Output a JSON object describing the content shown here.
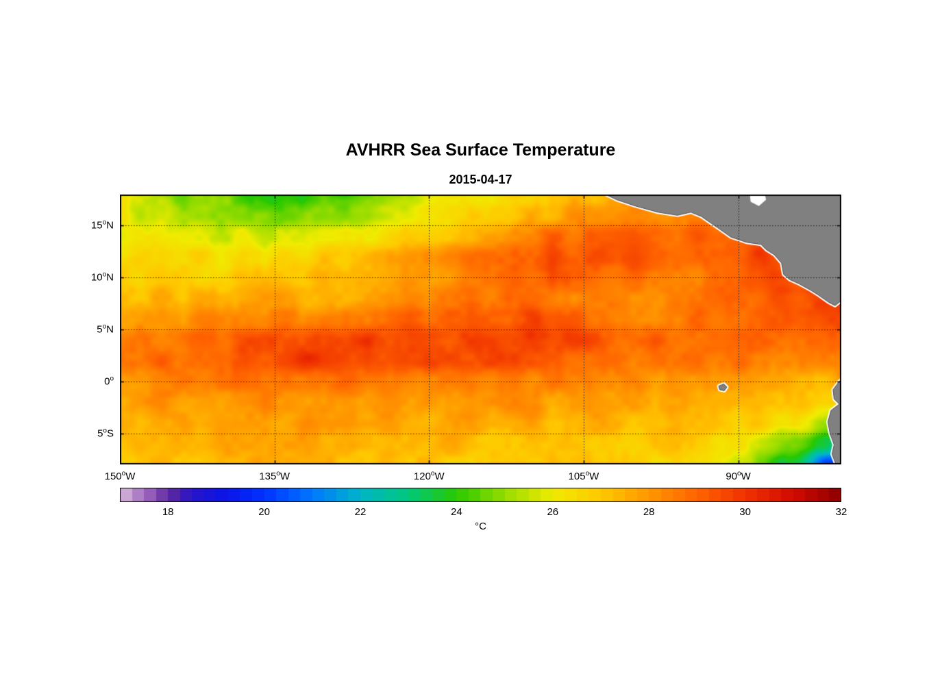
{
  "figure": {
    "title": "AVHRR Sea Surface Temperature",
    "subtitle": "2015-04-17",
    "unit_label": "°C",
    "land_color": "#808080",
    "coast_fringe_color": "#ffffff",
    "background_color": "#ffffff"
  },
  "chart_data": {
    "type": "heatmap",
    "title": "AVHRR Sea Surface Temperature",
    "subtitle": "2015-04-17",
    "xlabel": "",
    "ylabel": "",
    "colorbar_label": "°C",
    "lon_range": [
      -150,
      -80
    ],
    "lat_range": [
      -8,
      18
    ],
    "value_range": [
      17,
      32
    ],
    "grid_style": "dotted",
    "lons": [
      -150,
      -145,
      -140,
      -135,
      -130,
      -125,
      -120,
      -115,
      -110,
      -105,
      -100,
      -95,
      -90,
      -85,
      -80
    ],
    "lats": [
      18,
      16,
      14,
      12,
      10,
      8,
      6,
      4,
      2,
      0,
      -2,
      -4,
      -6,
      -8
    ],
    "sst_values_c": [
      [
        25.8,
        25.0,
        24.6,
        24.0,
        24.3,
        25.0,
        25.6,
        26.2,
        26.8,
        27.2,
        27.6,
        28.0,
        28.2,
        28.3,
        28.3
      ],
      [
        25.9,
        25.4,
        25.1,
        24.5,
        24.9,
        25.5,
        26.1,
        26.7,
        27.4,
        27.8,
        28.2,
        28.6,
        28.8,
        28.8,
        28.8
      ],
      [
        26.2,
        26.0,
        25.8,
        25.6,
        26.0,
        26.4,
        27.0,
        27.6,
        28.6,
        29.0,
        29.2,
        29.0,
        29.2,
        29.4,
        29.2
      ],
      [
        26.6,
        26.5,
        26.4,
        26.5,
        27.0,
        27.4,
        28.0,
        28.6,
        29.2,
        29.4,
        29.4,
        29.0,
        29.4,
        29.8,
        29.6
      ],
      [
        27.0,
        26.9,
        26.9,
        27.0,
        27.4,
        27.6,
        28.0,
        28.4,
        29.0,
        29.0,
        28.6,
        28.6,
        29.0,
        29.4,
        29.8
      ],
      [
        27.4,
        27.4,
        27.4,
        27.5,
        27.6,
        28.0,
        28.4,
        28.5,
        28.6,
        28.5,
        28.2,
        28.2,
        28.8,
        29.4,
        29.8
      ],
      [
        27.9,
        28.0,
        28.1,
        28.4,
        28.6,
        28.9,
        29.0,
        29.3,
        29.4,
        29.0,
        28.6,
        28.6,
        29.0,
        29.4,
        29.5
      ],
      [
        28.3,
        28.6,
        29.0,
        29.4,
        29.6,
        29.6,
        29.6,
        29.7,
        29.6,
        29.5,
        29.0,
        28.7,
        29.0,
        29.1,
        28.7
      ],
      [
        28.5,
        28.8,
        29.1,
        29.5,
        29.9,
        29.6,
        29.5,
        29.5,
        29.2,
        29.0,
        28.7,
        28.6,
        28.6,
        28.5,
        28.1
      ],
      [
        28.1,
        28.4,
        28.5,
        28.6,
        28.9,
        28.6,
        28.5,
        28.5,
        28.4,
        28.2,
        28.1,
        28.0,
        28.0,
        27.7,
        27.4
      ],
      [
        27.6,
        28.0,
        28.0,
        28.1,
        28.1,
        28.0,
        28.0,
        28.0,
        28.0,
        27.7,
        27.6,
        27.5,
        27.5,
        27.1,
        26.4
      ],
      [
        27.4,
        27.6,
        27.6,
        27.7,
        27.9,
        27.7,
        27.6,
        27.6,
        27.6,
        27.5,
        27.2,
        27.1,
        27.0,
        26.4,
        24.8
      ],
      [
        27.1,
        27.4,
        27.5,
        27.5,
        27.6,
        27.5,
        27.4,
        27.2,
        27.1,
        27.1,
        27.0,
        26.9,
        26.5,
        24.6,
        23.0
      ],
      [
        27.0,
        27.1,
        27.3,
        27.4,
        27.4,
        27.2,
        27.1,
        27.0,
        27.0,
        27.0,
        26.9,
        26.6,
        26.0,
        23.6,
        19.5
      ]
    ],
    "colormap_stops": [
      [
        17.0,
        "#d8b8d8"
      ],
      [
        17.35,
        "#b284c8"
      ],
      [
        17.7,
        "#8c50b4"
      ],
      [
        18.05,
        "#5a28a0"
      ],
      [
        18.5,
        "#2814c8"
      ],
      [
        19.2,
        "#0a14e6"
      ],
      [
        20.0,
        "#0032ff"
      ],
      [
        21.0,
        "#0078ff"
      ],
      [
        22.0,
        "#00b4c8"
      ],
      [
        23.0,
        "#00c87d"
      ],
      [
        24.0,
        "#28c800"
      ],
      [
        25.0,
        "#96dc00"
      ],
      [
        26.0,
        "#f0eb00"
      ],
      [
        27.0,
        "#ffc800"
      ],
      [
        28.0,
        "#ff9600"
      ],
      [
        29.0,
        "#ff6400"
      ],
      [
        30.0,
        "#f03200"
      ],
      [
        31.0,
        "#d20a00"
      ],
      [
        32.0,
        "#8c0000"
      ]
    ],
    "colorbar_ticks": [
      18,
      20,
      22,
      24,
      26,
      28,
      30,
      32
    ],
    "xticks": [
      {
        "lon": -150,
        "num": "150",
        "dir": "W"
      },
      {
        "lon": -135,
        "num": "135",
        "dir": "W"
      },
      {
        "lon": -120,
        "num": "120",
        "dir": "W"
      },
      {
        "lon": -105,
        "num": "105",
        "dir": "W"
      },
      {
        "lon": -90,
        "num": "90",
        "dir": "W"
      }
    ],
    "yticks": [
      {
        "lat": 15,
        "num": "15",
        "dir": "N"
      },
      {
        "lat": 10,
        "num": "10",
        "dir": "N"
      },
      {
        "lat": 5,
        "num": "5",
        "dir": "N"
      },
      {
        "lat": 0,
        "num": "0",
        "dir": ""
      },
      {
        "lat": -5,
        "num": "5",
        "dir": "S"
      }
    ],
    "land_polygons": {
      "central_america": [
        [
          -103.6,
          18.35
        ],
        [
          -101.8,
          17.5
        ],
        [
          -100.0,
          16.9
        ],
        [
          -97.8,
          16.3
        ],
        [
          -95.9,
          16.0
        ],
        [
          -94.6,
          16.3
        ],
        [
          -93.6,
          15.9
        ],
        [
          -92.0,
          14.8
        ],
        [
          -90.7,
          13.9
        ],
        [
          -89.2,
          13.4
        ],
        [
          -87.8,
          13.2
        ],
        [
          -87.3,
          12.7
        ],
        [
          -86.5,
          12.2
        ],
        [
          -85.8,
          11.4
        ],
        [
          -85.6,
          10.3
        ],
        [
          -85.0,
          9.8
        ],
        [
          -84.1,
          9.4
        ],
        [
          -83.0,
          8.8
        ],
        [
          -82.2,
          8.3
        ],
        [
          -81.2,
          7.6
        ],
        [
          -80.6,
          7.3
        ],
        [
          -80.1,
          7.7
        ],
        [
          -79.6,
          8.0
        ],
        [
          -79.6,
          18.35
        ]
      ],
      "south_america": [
        [
          -79.6,
          0.6
        ],
        [
          -80.2,
          0.0
        ],
        [
          -80.8,
          -0.8
        ],
        [
          -80.7,
          -1.7
        ],
        [
          -80.2,
          -2.2
        ],
        [
          -81.0,
          -2.8
        ],
        [
          -81.3,
          -3.9
        ],
        [
          -81.1,
          -5.0
        ],
        [
          -80.7,
          -6.1
        ],
        [
          -80.9,
          -7.0
        ],
        [
          -80.4,
          -8.35
        ],
        [
          -79.6,
          -8.35
        ]
      ],
      "galapagos": [
        [
          -91.9,
          -0.45
        ],
        [
          -91.4,
          -0.25
        ],
        [
          -91.1,
          -0.55
        ],
        [
          -91.35,
          -0.9
        ],
        [
          -91.8,
          -0.8
        ]
      ]
    },
    "no_data_patches": [
      [
        [
          -88.9,
          18.35
        ],
        [
          -87.5,
          18.35
        ],
        [
          -87.3,
          17.5
        ],
        [
          -88.0,
          16.9
        ],
        [
          -88.8,
          17.3
        ]
      ]
    ]
  }
}
